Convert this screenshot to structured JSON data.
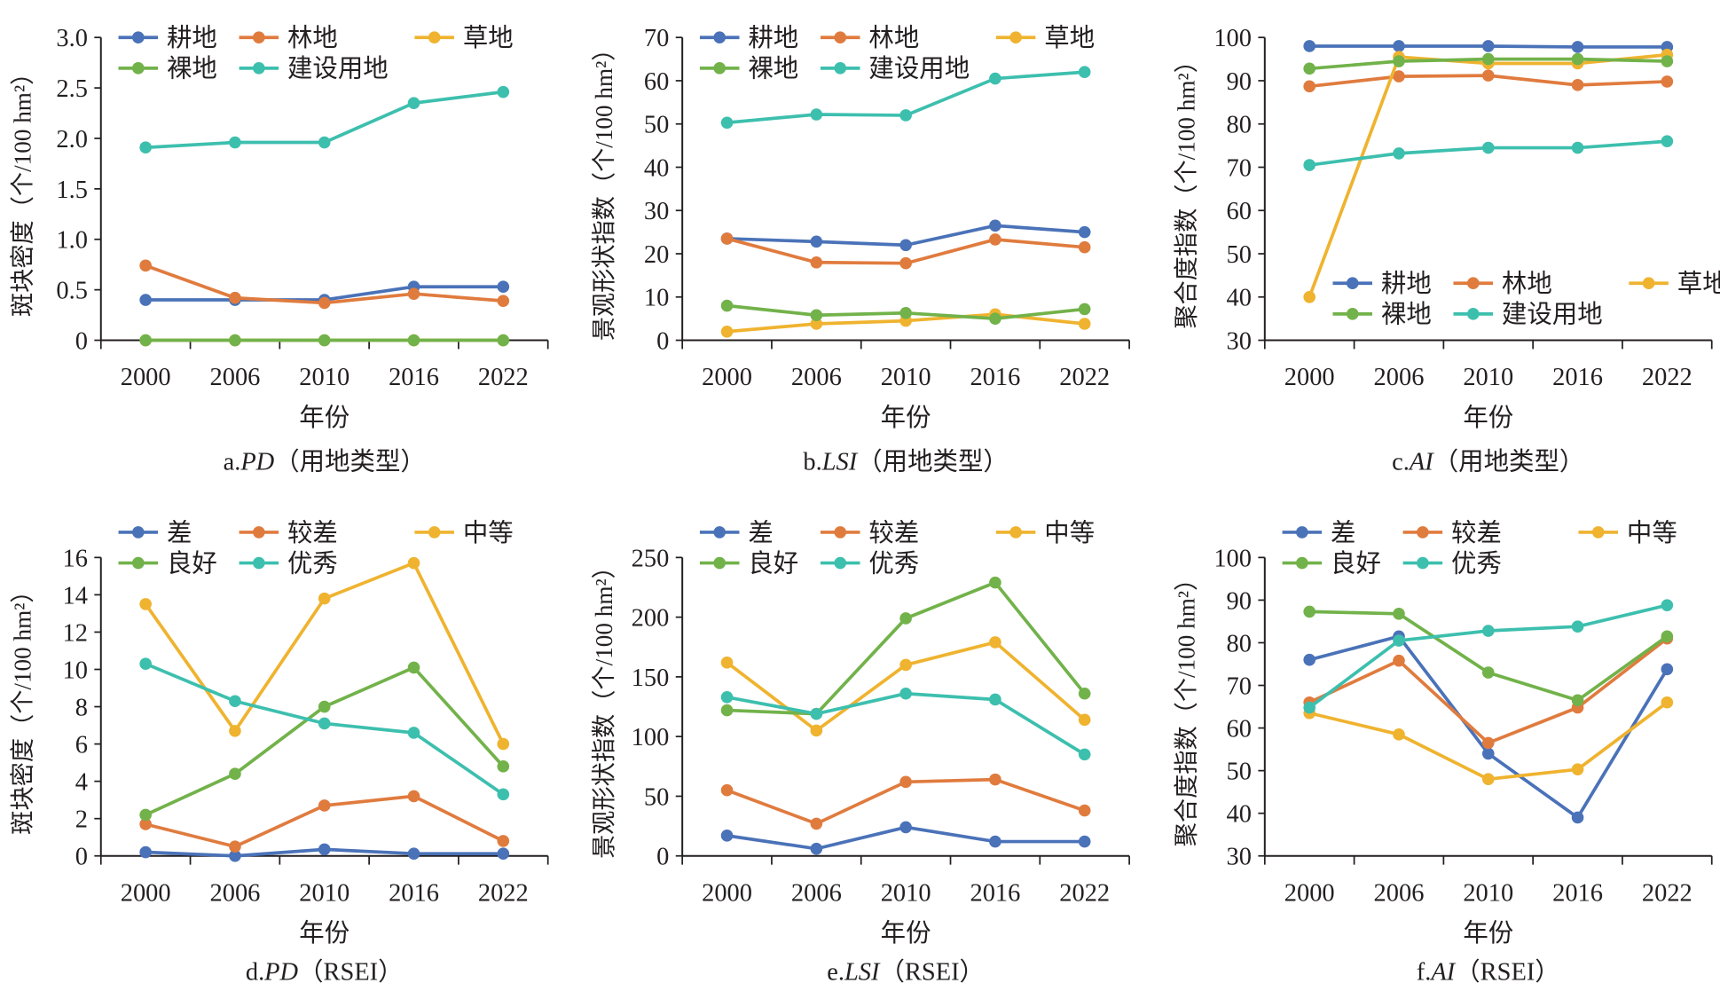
{
  "colors": {
    "blue": "#4a72b8",
    "orange": "#e07b3e",
    "yellow": "#efb32f",
    "green": "#72b24a",
    "teal": "#3dbfae",
    "axis": "#231f20"
  },
  "chart_data": [
    {
      "id": "a",
      "type": "line",
      "title_prefix": "a.",
      "title_italic": "PD",
      "title_suffix": "（用地类型）",
      "xlabel": "年份",
      "ylabel": "斑块密度（个/100 hm²）",
      "categories": [
        "2000",
        "2006",
        "2010",
        "2016",
        "2022"
      ],
      "ylim": [
        0,
        3.0
      ],
      "yticks": [
        "0",
        "0.5",
        "1.0",
        "1.5",
        "2.0",
        "2.5",
        "3.0"
      ],
      "ytick_values": [
        0,
        0.5,
        1.0,
        1.5,
        2.0,
        2.5,
        3.0
      ],
      "legend": "top-left",
      "grid": false,
      "series": [
        {
          "name": "耕地",
          "color": "#4a72b8",
          "values": [
            0.4,
            0.4,
            0.4,
            0.53,
            0.53
          ]
        },
        {
          "name": "林地",
          "color": "#e07b3e",
          "values": [
            0.74,
            0.42,
            0.37,
            0.46,
            0.39
          ]
        },
        {
          "name": "草地",
          "color": "#efb32f",
          "values": [
            0,
            0,
            0,
            0,
            0
          ]
        },
        {
          "name": "裸地",
          "color": "#72b24a",
          "values": [
            0,
            0,
            0,
            0,
            0
          ]
        },
        {
          "name": "建设用地",
          "color": "#3dbfae",
          "values": [
            1.91,
            1.96,
            1.96,
            2.35,
            2.46
          ]
        }
      ]
    },
    {
      "id": "b",
      "type": "line",
      "title_prefix": "b.",
      "title_italic": "LSI",
      "title_suffix": "（用地类型）",
      "xlabel": "年份",
      "ylabel": "景观形状指数（个/100 hm²）",
      "categories": [
        "2000",
        "2006",
        "2010",
        "2016",
        "2022"
      ],
      "ylim": [
        0,
        70
      ],
      "yticks": [
        "0",
        "10",
        "20",
        "30",
        "40",
        "50",
        "60",
        "70"
      ],
      "ytick_values": [
        0,
        10,
        20,
        30,
        40,
        50,
        60,
        70
      ],
      "legend": "top-left",
      "grid": false,
      "series": [
        {
          "name": "耕地",
          "color": "#4a72b8",
          "values": [
            23.5,
            22.8,
            22.0,
            26.5,
            25.0
          ]
        },
        {
          "name": "林地",
          "color": "#e07b3e",
          "values": [
            23.5,
            18.0,
            17.8,
            23.3,
            21.5
          ]
        },
        {
          "name": "草地",
          "color": "#efb32f",
          "values": [
            2.0,
            3.8,
            4.5,
            6.0,
            3.8
          ]
        },
        {
          "name": "裸地",
          "color": "#72b24a",
          "values": [
            8.0,
            5.8,
            6.3,
            5.0,
            7.2
          ]
        },
        {
          "name": "建设用地",
          "color": "#3dbfae",
          "values": [
            50.3,
            52.2,
            52.0,
            60.5,
            62.0
          ]
        }
      ]
    },
    {
      "id": "c",
      "type": "line",
      "title_prefix": "c.",
      "title_italic": "AI",
      "title_suffix": "（用地类型）",
      "xlabel": "年份",
      "ylabel": "聚合度指数（个/100 hm²）",
      "categories": [
        "2000",
        "2006",
        "2010",
        "2016",
        "2022"
      ],
      "ylim": [
        30,
        100
      ],
      "yticks": [
        "30",
        "40",
        "50",
        "60",
        "70",
        "80",
        "90",
        "100"
      ],
      "ytick_values": [
        30,
        40,
        50,
        60,
        70,
        80,
        90,
        100
      ],
      "legend": "bottom-right",
      "grid": false,
      "series": [
        {
          "name": "耕地",
          "color": "#4a72b8",
          "values": [
            98.0,
            98.0,
            98.0,
            97.8,
            97.8
          ]
        },
        {
          "name": "林地",
          "color": "#e07b3e",
          "values": [
            88.7,
            91.0,
            91.2,
            89.0,
            89.8
          ]
        },
        {
          "name": "草地",
          "color": "#efb32f",
          "values": [
            40.0,
            95.5,
            94.0,
            94.0,
            96.0
          ]
        },
        {
          "name": "裸地",
          "color": "#72b24a",
          "values": [
            92.8,
            94.5,
            95.0,
            95.0,
            94.5
          ]
        },
        {
          "name": "建设用地",
          "color": "#3dbfae",
          "values": [
            70.5,
            73.2,
            74.5,
            74.5,
            76.0
          ]
        }
      ]
    },
    {
      "id": "d",
      "type": "line",
      "title_prefix": "d.",
      "title_italic": "PD",
      "title_suffix": "（RSEI）",
      "xlabel": "年份",
      "ylabel": "斑块密度（个/100 hm²）",
      "categories": [
        "2000",
        "2006",
        "2010",
        "2016",
        "2022"
      ],
      "ylim": [
        0,
        16
      ],
      "yticks": [
        "0",
        "2",
        "4",
        "6",
        "8",
        "10",
        "12",
        "14",
        "16"
      ],
      "ytick_values": [
        0,
        2,
        4,
        6,
        8,
        10,
        12,
        14,
        16
      ],
      "legend": "top-left",
      "grid": false,
      "series": [
        {
          "name": "差",
          "color": "#4a72b8",
          "values": [
            0.2,
            0.0,
            0.35,
            0.12,
            0.12
          ]
        },
        {
          "name": "较差",
          "color": "#e07b3e",
          "values": [
            1.7,
            0.5,
            2.7,
            3.2,
            0.8
          ]
        },
        {
          "name": "中等",
          "color": "#efb32f",
          "values": [
            13.5,
            6.7,
            13.8,
            15.7,
            6.0
          ]
        },
        {
          "name": "良好",
          "color": "#72b24a",
          "values": [
            2.2,
            4.4,
            8.0,
            10.1,
            4.8
          ]
        },
        {
          "name": "优秀",
          "color": "#3dbfae",
          "values": [
            10.3,
            8.3,
            7.1,
            6.6,
            3.3
          ]
        }
      ]
    },
    {
      "id": "e",
      "type": "line",
      "title_prefix": "e.",
      "title_italic": "LSI",
      "title_suffix": "（RSEI）",
      "xlabel": "年份",
      "ylabel": "景观形状指数（个/100 hm²）",
      "categories": [
        "2000",
        "2006",
        "2010",
        "2016",
        "2022"
      ],
      "ylim": [
        0,
        250
      ],
      "yticks": [
        "0",
        "50",
        "100",
        "150",
        "200",
        "250"
      ],
      "ytick_values": [
        0,
        50,
        100,
        150,
        200,
        250
      ],
      "legend": "top-left",
      "grid": false,
      "series": [
        {
          "name": "差",
          "color": "#4a72b8",
          "values": [
            17,
            6,
            24,
            12,
            12
          ]
        },
        {
          "name": "较差",
          "color": "#e07b3e",
          "values": [
            55,
            27,
            62,
            64,
            38
          ]
        },
        {
          "name": "中等",
          "color": "#efb32f",
          "values": [
            162,
            105,
            160,
            179,
            114
          ]
        },
        {
          "name": "良好",
          "color": "#72b24a",
          "values": [
            122,
            119,
            199,
            229,
            136
          ]
        },
        {
          "name": "优秀",
          "color": "#3dbfae",
          "values": [
            133,
            119,
            136,
            131,
            85
          ]
        }
      ]
    },
    {
      "id": "f",
      "type": "line",
      "title_prefix": "f.",
      "title_italic": "AI",
      "title_suffix": "（RSEI）",
      "xlabel": "年份",
      "ylabel": "聚合度指数（个/100 hm²）",
      "categories": [
        "2000",
        "2006",
        "2010",
        "2016",
        "2022"
      ],
      "ylim": [
        30,
        100
      ],
      "yticks": [
        "30",
        "40",
        "50",
        "60",
        "70",
        "80",
        "90",
        "100"
      ],
      "ytick_values": [
        30,
        40,
        50,
        60,
        70,
        80,
        90,
        100
      ],
      "legend": "top-left",
      "grid": false,
      "series": [
        {
          "name": "差",
          "color": "#4a72b8",
          "values": [
            76.0,
            81.5,
            54.0,
            39.0,
            73.8
          ]
        },
        {
          "name": "较差",
          "color": "#e07b3e",
          "values": [
            66.0,
            75.8,
            56.5,
            64.8,
            81.0
          ]
        },
        {
          "name": "中等",
          "color": "#efb32f",
          "values": [
            63.5,
            58.5,
            48.0,
            50.3,
            66.0
          ]
        },
        {
          "name": "良好",
          "color": "#72b24a",
          "values": [
            87.3,
            86.8,
            73.0,
            66.5,
            81.5
          ]
        },
        {
          "name": "优秀",
          "color": "#3dbfae",
          "values": [
            64.8,
            80.5,
            82.8,
            83.8,
            88.8
          ]
        }
      ]
    }
  ]
}
